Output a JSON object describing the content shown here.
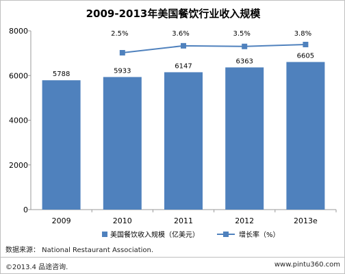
{
  "chart_data": {
    "type": "bar",
    "title": "2009-2013年美国餐饮行业收入规模",
    "categories": [
      "2009",
      "2010",
      "2011",
      "2012",
      "2013e"
    ],
    "series": [
      {
        "name": "美国餐饮收入规模（亿美元）",
        "type": "bar",
        "values": [
          5788,
          5933,
          6147,
          6363,
          6605
        ],
        "color": "#4f81bd"
      },
      {
        "name": "增长率（%）",
        "type": "line",
        "values": [
          null,
          2.5,
          3.6,
          3.5,
          3.8
        ],
        "labels": [
          "",
          "2.5%",
          "3.6%",
          "3.5%",
          "3.8%"
        ],
        "color": "#4f81bd"
      }
    ],
    "ylim": [
      0,
      8000
    ],
    "yticks": [
      "0",
      "2000",
      "4000",
      "6000",
      "8000"
    ],
    "legend_position": "bottom",
    "grid": false
  },
  "footer": {
    "source": "数据来源： National Restaurant Association.",
    "copyright": "©2013.4 品途咨询.",
    "website": "www.pintu360.com"
  }
}
